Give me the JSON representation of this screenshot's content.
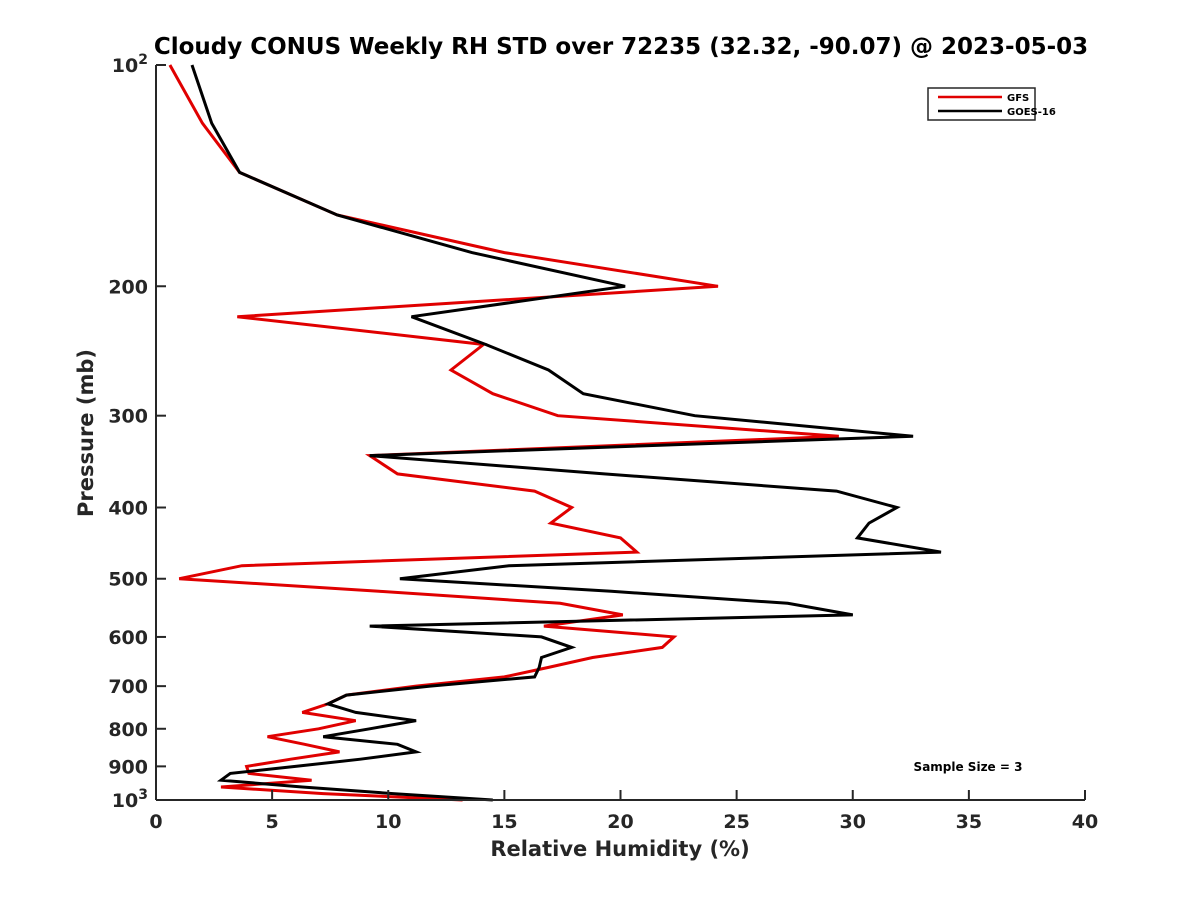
{
  "chart_data": {
    "type": "line",
    "title": "Cloudy CONUS Weekly RH STD over 72235 (32.32, -90.07) @ 2023-05-03",
    "xlabel": "Relative Humidity (%)",
    "ylabel": "Pressure (mb)",
    "xlim": [
      0,
      40
    ],
    "ylim": [
      100,
      1000
    ],
    "yscale": "log",
    "yreversed": true,
    "grid": false,
    "x_ticks": [
      0,
      5,
      10,
      15,
      20,
      25,
      30,
      35,
      40
    ],
    "x_tick_labels": [
      "0",
      "5",
      "10",
      "15",
      "20",
      "25",
      "30",
      "35",
      "40"
    ],
    "y_ticks": [
      100,
      200,
      300,
      400,
      500,
      600,
      700,
      800,
      900,
      1000
    ],
    "y_tick_labels": [
      {
        "base": "10",
        "exp": "2"
      },
      {
        "base": "200",
        "exp": ""
      },
      {
        "base": "300",
        "exp": ""
      },
      {
        "base": "400",
        "exp": ""
      },
      {
        "base": "500",
        "exp": ""
      },
      {
        "base": "600",
        "exp": ""
      },
      {
        "base": "700",
        "exp": ""
      },
      {
        "base": "800",
        "exp": ""
      },
      {
        "base": "900",
        "exp": ""
      },
      {
        "base": "10",
        "exp": "3"
      }
    ],
    "pressure_levels": [
      100,
      120,
      140,
      160,
      180,
      200,
      220,
      240,
      260,
      280,
      300,
      320,
      340,
      360,
      380,
      400,
      420,
      440,
      460,
      480,
      500,
      520,
      540,
      560,
      580,
      600,
      620,
      640,
      660,
      680,
      700,
      720,
      740,
      760,
      780,
      800,
      820,
      840,
      860,
      880,
      900,
      920,
      940,
      960,
      980,
      1000
    ],
    "series": [
      {
        "name": "GFS",
        "color": "#e00000",
        "values": [
          0.6,
          2.0,
          3.6,
          7.8,
          15.0,
          24.2,
          3.5,
          14.1,
          12.7,
          14.5,
          17.3,
          29.4,
          9.2,
          10.4,
          16.3,
          17.9,
          17.0,
          20.0,
          20.7,
          3.7,
          1.0,
          9.6,
          17.4,
          20.1,
          16.7,
          22.3,
          21.8,
          18.8,
          16.9,
          15.0,
          11.2,
          8.2,
          7.4,
          6.3,
          8.6,
          7.0,
          4.8,
          6.4,
          7.9,
          5.8,
          3.9,
          4.0,
          6.7,
          2.8,
          7.2,
          13.2
        ]
      },
      {
        "name": "GOES-16",
        "color": "#000000",
        "values": [
          1.55,
          2.4,
          3.6,
          7.8,
          13.6,
          20.2,
          11.0,
          14.2,
          16.9,
          18.4,
          23.2,
          32.6,
          9.2,
          19.3,
          29.3,
          31.9,
          30.7,
          30.2,
          33.8,
          15.2,
          10.5,
          19.6,
          27.2,
          30.0,
          9.2,
          16.6,
          17.9,
          16.6,
          16.5,
          16.3,
          11.8,
          8.2,
          7.4,
          8.6,
          11.2,
          9.2,
          7.2,
          10.4,
          11.2,
          8.8,
          6.0,
          3.2,
          2.8,
          6.3,
          10.2,
          14.5
        ]
      }
    ],
    "legend": {
      "placement": "top-right",
      "entries": [
        "GFS",
        "GOES-16"
      ]
    },
    "annotations": [
      "Sample Size = 3"
    ]
  }
}
